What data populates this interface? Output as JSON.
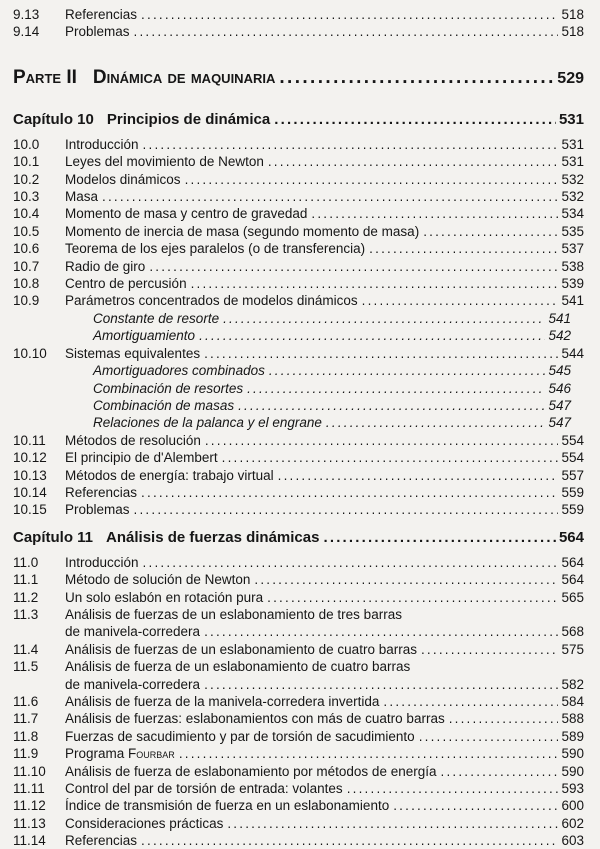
{
  "colors": {
    "paper": "#f3f2ef",
    "ink": "#161616"
  },
  "toc": {
    "tail_entries": [
      {
        "num": "9.13",
        "title": "Referencias",
        "page": "518"
      },
      {
        "num": "9.14",
        "title": "Problemas",
        "page": "518"
      }
    ],
    "part": {
      "label": "Parte II",
      "title": "Dinámica de maquinaria",
      "page": "529"
    },
    "chapters": [
      {
        "label": "Capítulo 10",
        "title": "Principios de dinámica",
        "page": "531",
        "entries": [
          {
            "num": "10.0",
            "title": "Introducción",
            "page": "531"
          },
          {
            "num": "10.1",
            "title": "Leyes del movimiento de Newton",
            "page": "531"
          },
          {
            "num": "10.2",
            "title": "Modelos dinámicos",
            "page": "532"
          },
          {
            "num": "10.3",
            "title": "Masa",
            "page": "532"
          },
          {
            "num": "10.4",
            "title": "Momento de masa y centro de gravedad",
            "page": "534"
          },
          {
            "num": "10.5",
            "title": "Momento de inercia de masa (segundo momento de masa)",
            "page": "535"
          },
          {
            "num": "10.6",
            "title": "Teorema de los ejes paralelos (o de transferencia)",
            "page": "537"
          },
          {
            "num": "10.7",
            "title": "Radio de giro",
            "page": "538"
          },
          {
            "num": "10.8",
            "title": "Centro de percusión",
            "page": "539"
          },
          {
            "num": "10.9",
            "title": "Parámetros concentrados de modelos dinámicos",
            "page": "541"
          },
          {
            "sub": true,
            "title": "Constante de resorte",
            "page": "541"
          },
          {
            "sub": true,
            "title": "Amortiguamiento",
            "page": "542"
          },
          {
            "num": "10.10",
            "title": "Sistemas equivalentes",
            "page": "544"
          },
          {
            "sub": true,
            "title": "Amortiguadores combinados",
            "page": "545"
          },
          {
            "sub": true,
            "title": "Combinación de resortes",
            "page": "546"
          },
          {
            "sub": true,
            "title": "Combinación de masas",
            "page": "547"
          },
          {
            "sub": true,
            "title": "Relaciones de la palanca y el engrane",
            "page": "547"
          },
          {
            "num": "10.11",
            "title": "Métodos de resolución",
            "page": "554"
          },
          {
            "num": "10.12",
            "title": "El principio de d'Alembert",
            "page": "554"
          },
          {
            "num": "10.13",
            "title": "Métodos de energía: trabajo virtual",
            "page": "557"
          },
          {
            "num": "10.14",
            "title": "Referencias",
            "page": "559"
          },
          {
            "num": "10.15",
            "title": "Problemas",
            "page": "559"
          }
        ]
      },
      {
        "label": "Capítulo 11",
        "title": "Análisis de fuerzas dinámicas",
        "page": "564",
        "entries": [
          {
            "num": "11.0",
            "title": "Introducción",
            "page": "564"
          },
          {
            "num": "11.1",
            "title": "Método de solución de Newton",
            "page": "564"
          },
          {
            "num": "11.2",
            "title": "Un solo eslabón en rotación pura",
            "page": "565"
          },
          {
            "num": "11.3",
            "title": "Análisis de fuerzas de un eslabonamiento de tres barras",
            "title2": "de manivela-corredera",
            "page": "568"
          },
          {
            "num": "11.4",
            "title": "Análisis de fuerzas de un eslabonamiento de cuatro barras",
            "page": "575"
          },
          {
            "num": "11.5",
            "title": "Análisis de fuerza de un eslabonamiento de cuatro barras",
            "title2": "de manivela-corredera",
            "page": "582"
          },
          {
            "num": "11.6",
            "title": "Análisis de fuerza de la manivela-corredera invertida",
            "page": "584"
          },
          {
            "num": "11.7",
            "title": "Análisis de fuerzas: eslabonamientos con más de cuatro barras",
            "page": "588"
          },
          {
            "num": "11.8",
            "title": "Fuerzas de sacudimiento y par de torsión de sacudimiento",
            "page": "589"
          },
          {
            "num": "11.9",
            "title": "Programa",
            "smallcaps": "Fourbar",
            "page": "590"
          },
          {
            "num": "11.10",
            "title": "Análisis de fuerza de eslabonamiento por métodos de energía",
            "page": "590"
          },
          {
            "num": "11.11",
            "title": "Control del par de torsión de entrada: volantes",
            "page": "593"
          },
          {
            "num": "11.12",
            "title": "Índice de transmisión de fuerza en un eslabonamiento",
            "page": "600"
          },
          {
            "num": "11.13",
            "title": "Consideraciones prácticas",
            "page": "602"
          },
          {
            "num": "11.14",
            "title": "Referencias",
            "page": "603"
          }
        ]
      }
    ]
  }
}
